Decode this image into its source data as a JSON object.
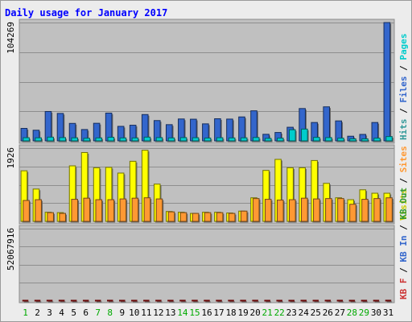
{
  "chart_data": {
    "type": "bar",
    "title": "Daily usage for January 2017",
    "categories": [
      "1",
      "2",
      "3",
      "4",
      "5",
      "6",
      "7",
      "8",
      "9",
      "10",
      "11",
      "12",
      "13",
      "14",
      "15",
      "16",
      "17",
      "18",
      "19",
      "20",
      "21",
      "22",
      "23",
      "24",
      "25",
      "26",
      "27",
      "28",
      "29",
      "30",
      "31"
    ],
    "weekend_days": [
      1,
      7,
      8,
      14,
      15,
      21,
      22,
      28,
      29
    ],
    "panels": [
      {
        "id": "hits",
        "max_label": "104269",
        "ymax": 104269,
        "legend": [
          {
            "text": "Hits",
            "color": "#339999"
          },
          {
            "text": "Files",
            "color": "#3366cc"
          },
          {
            "text": "Pages",
            "color": "#00cccc"
          }
        ],
        "series": [
          {
            "name": "Hits",
            "color": "#3366cc",
            "values": [
              11000,
              9400,
              25900,
              24200,
              15400,
              10000,
              15500,
              24500,
              12800,
              13800,
              23200,
              17900,
              14300,
              19300,
              19100,
              15000,
              19500,
              19200,
              21100,
              26500,
              5800,
              7400,
              12000,
              28500,
              16200,
              30000,
              17600,
              4100,
              5700,
              16200,
              104269
            ]
          },
          {
            "name": "Pages",
            "color": "#00cccc",
            "values": [
              2800,
              2700,
              3300,
              2900,
              2700,
              2300,
              2600,
              3200,
              2600,
              2600,
              3300,
              2900,
              2600,
              2900,
              2800,
              2500,
              2800,
              2600,
              2700,
              3000,
              2200,
              2400,
              9800,
              10400,
              3100,
              2900,
              2400,
              1800,
              1800,
              2400,
              3800
            ]
          }
        ]
      },
      {
        "id": "visits",
        "max_label": "1926",
        "ymax": 1926,
        "legend": [
          {
            "text": "Visits",
            "color": "#cccc00"
          },
          {
            "text": "Sites",
            "color": "#ff9933"
          }
        ],
        "series": [
          {
            "name": "Visits",
            "color": "#ffff00",
            "values": [
              1330,
              850,
              240,
              230,
              1460,
              1810,
              1410,
              1420,
              1270,
              1580,
              1870,
              980,
              260,
              240,
              210,
              240,
              240,
              220,
              270,
              620,
              1340,
              1630,
              1410,
              1410,
              1600,
              1000,
              620,
              570,
              830,
              740,
              740
            ]
          },
          {
            "name": "Sites",
            "color": "#ff9933",
            "values": [
              550,
              570,
              230,
              210,
              580,
              610,
              570,
              570,
              590,
              610,
              620,
              590,
              250,
              230,
              210,
              230,
              230,
              210,
              270,
              600,
              580,
              560,
              570,
              610,
              590,
              600,
              600,
              450,
              580,
              600,
              620
            ]
          }
        ]
      },
      {
        "id": "kbytes",
        "max_label": "52067916",
        "ymax": 52067916,
        "legend": [
          {
            "text": "KB F",
            "color": "#cc3333"
          },
          {
            "text": "KB In",
            "color": "#3366cc"
          },
          {
            "text": "KB Out",
            "color": "#339933"
          }
        ],
        "series": [
          {
            "name": "KB F",
            "color": "#ee1111",
            "values": [
              8700,
              8900,
              24500,
              29400,
              6700,
              4600,
              12000,
              27500,
              7500,
              10800,
              14800,
              18100,
              13300,
              29100,
              21200,
              17500,
              12000,
              22200,
              22300,
              32500,
              2100,
              3000,
              5600,
              23600,
              13000,
              33500,
              24600,
              2300,
              2100,
              8900,
              46500
            ]
          }
        ]
      }
    ]
  }
}
